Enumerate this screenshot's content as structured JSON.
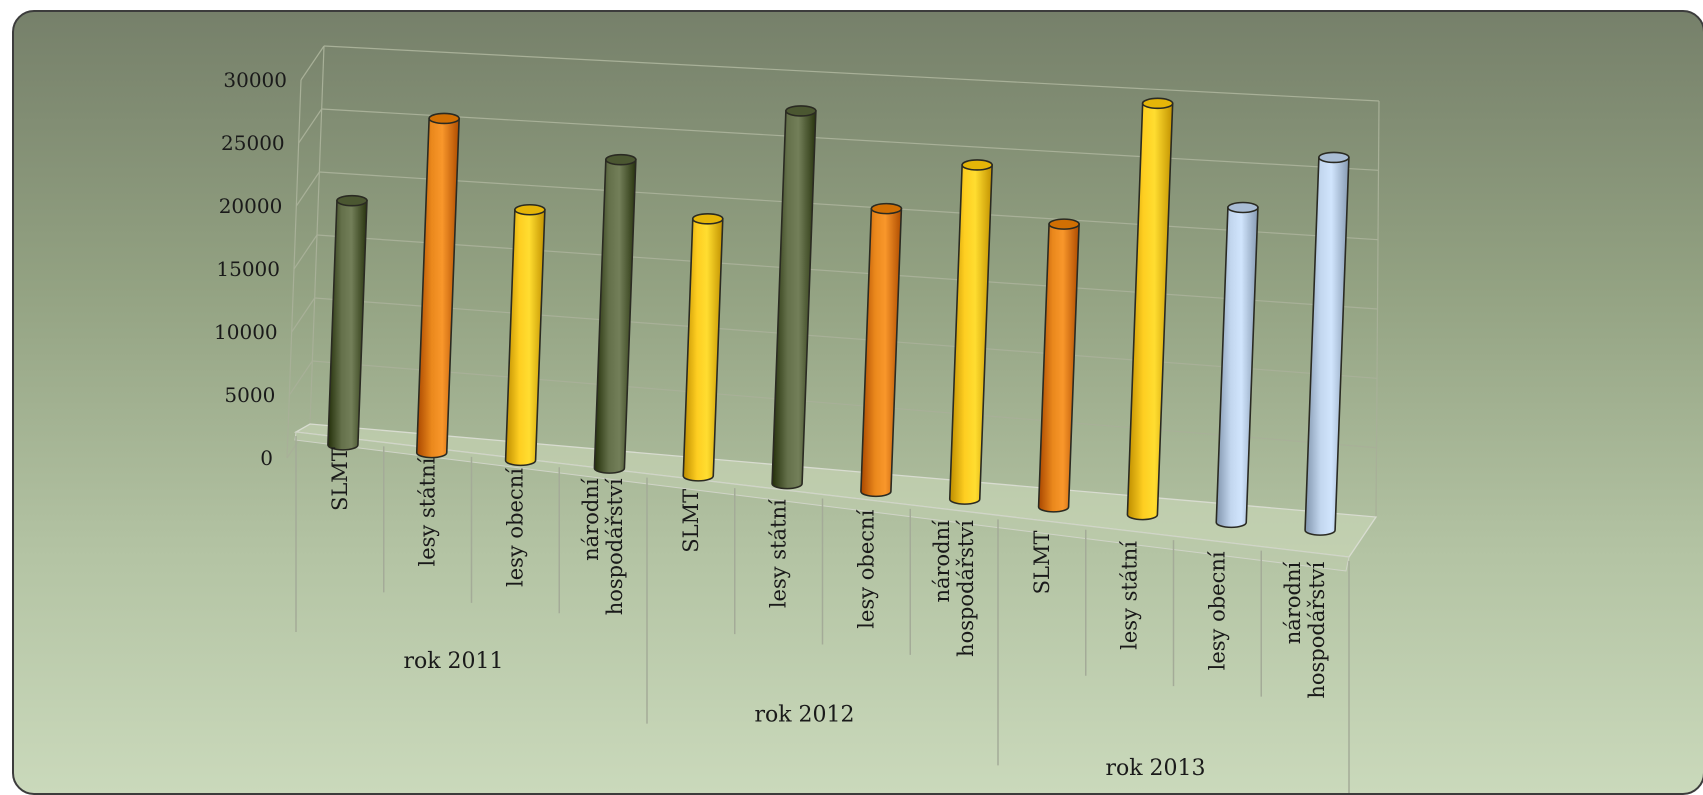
{
  "chart_data": {
    "type": "bar",
    "style": "3d-cylinder",
    "title": "",
    "xlabel": "",
    "ylabel": "",
    "ylim": [
      0,
      30000
    ],
    "yticks": [
      0,
      5000,
      10000,
      15000,
      20000,
      25000,
      30000
    ],
    "grid": true,
    "legend": "none",
    "groups": [
      {
        "label": "rok 2011",
        "bars": [
          {
            "category": "SLMT",
            "value": 19000,
            "color": "#5a6640"
          },
          {
            "category": "lesy státní",
            "value": 26000,
            "color": "#e07e12"
          },
          {
            "category": "lesy obecní",
            "value": 19500,
            "color": "#f4c417"
          },
          {
            "category": "národní hospodářství",
            "value": 24000,
            "color": "#5a6640"
          }
        ]
      },
      {
        "label": "rok 2012",
        "bars": [
          {
            "category": "SLMT",
            "value": 20000,
            "color": "#f4c417"
          },
          {
            "category": "lesy státní",
            "value": 29000,
            "color": "#5a6640"
          },
          {
            "category": "lesy obecní",
            "value": 22000,
            "color": "#e07e12"
          },
          {
            "category": "národní hospodářství",
            "value": 26000,
            "color": "#f4c417"
          }
        ]
      },
      {
        "label": "rok 2013",
        "bars": [
          {
            "category": "SLMT",
            "value": 22000,
            "color": "#e07e12"
          },
          {
            "category": "lesy státní",
            "value": 32000,
            "color": "#f4c417"
          },
          {
            "category": "lesy obecní",
            "value": 24500,
            "color": "#b8cce4"
          },
          {
            "category": "národní hospodářství",
            "value": 29000,
            "color": "#b8cce4"
          }
        ]
      }
    ]
  }
}
